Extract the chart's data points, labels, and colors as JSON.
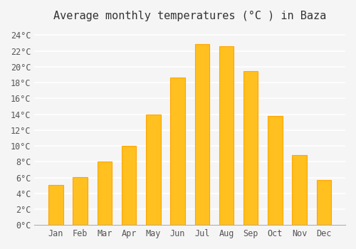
{
  "title": "Average monthly temperatures (°C ) in Baza",
  "months": [
    "Jan",
    "Feb",
    "Mar",
    "Apr",
    "May",
    "Jun",
    "Jul",
    "Aug",
    "Sep",
    "Oct",
    "Nov",
    "Dec"
  ],
  "values": [
    5.1,
    6.1,
    8.0,
    10.0,
    14.0,
    18.6,
    22.9,
    22.6,
    19.4,
    13.8,
    8.8,
    5.7
  ],
  "bar_color_face": "#FFC020",
  "bar_color_edge": "#FFA500",
  "ylim": [
    0,
    25
  ],
  "yticks": [
    0,
    2,
    4,
    6,
    8,
    10,
    12,
    14,
    16,
    18,
    20,
    22,
    24
  ],
  "ytick_labels": [
    "0°C",
    "2°C",
    "4°C",
    "6°C",
    "8°C",
    "10°C",
    "12°C",
    "14°C",
    "16°C",
    "18°C",
    "20°C",
    "22°C",
    "24°C"
  ],
  "background_color": "#f5f5f5",
  "grid_color": "#ffffff",
  "title_fontsize": 11,
  "tick_fontsize": 8.5,
  "font_family": "monospace"
}
